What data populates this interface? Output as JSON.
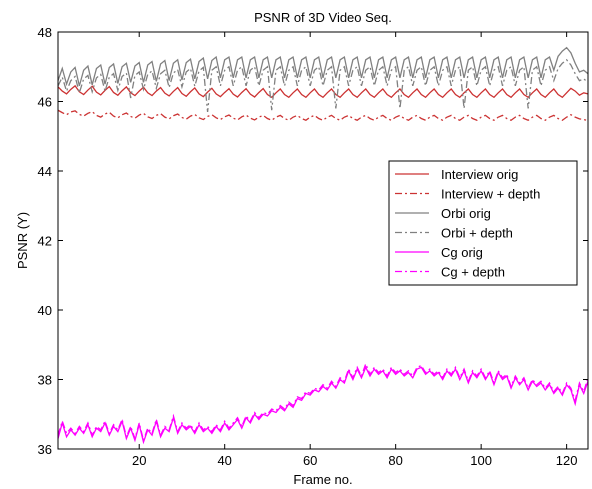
{
  "chart_data": {
    "type": "line",
    "title": "PSNR of 3D Video Seq.",
    "xlabel": "Frame no.",
    "ylabel": "PSNR (Y)",
    "xlim": [
      1,
      125
    ],
    "ylim": [
      36,
      48
    ],
    "xticks": [
      20,
      40,
      60,
      80,
      100,
      120
    ],
    "yticks": [
      36,
      38,
      40,
      42,
      44,
      46,
      48
    ],
    "grid": false,
    "legend_position": "right",
    "x": [
      1,
      2,
      3,
      4,
      5,
      6,
      7,
      8,
      9,
      10,
      11,
      12,
      13,
      14,
      15,
      16,
      17,
      18,
      19,
      20,
      21,
      22,
      23,
      24,
      25,
      26,
      27,
      28,
      29,
      30,
      31,
      32,
      33,
      34,
      35,
      36,
      37,
      38,
      39,
      40,
      41,
      42,
      43,
      44,
      45,
      46,
      47,
      48,
      49,
      50,
      51,
      52,
      53,
      54,
      55,
      56,
      57,
      58,
      59,
      60,
      61,
      62,
      63,
      64,
      65,
      66,
      67,
      68,
      69,
      70,
      71,
      72,
      73,
      74,
      75,
      76,
      77,
      78,
      79,
      80,
      81,
      82,
      83,
      84,
      85,
      86,
      87,
      88,
      89,
      90,
      91,
      92,
      93,
      94,
      95,
      96,
      97,
      98,
      99,
      100,
      101,
      102,
      103,
      104,
      105,
      106,
      107,
      108,
      109,
      110,
      111,
      112,
      113,
      114,
      115,
      116,
      117,
      118,
      119,
      120,
      121,
      122,
      123,
      124,
      125
    ],
    "series": [
      {
        "name": "Interview orig",
        "color": "#cc3333",
        "dash": "solid",
        "values": [
          46.42,
          46.3,
          46.22,
          46.35,
          46.45,
          46.28,
          46.2,
          46.33,
          46.44,
          46.27,
          46.19,
          46.32,
          46.43,
          46.26,
          46.18,
          46.31,
          46.42,
          46.25,
          46.17,
          46.3,
          46.41,
          46.25,
          46.17,
          46.3,
          46.4,
          46.24,
          46.16,
          46.29,
          46.4,
          46.23,
          46.15,
          46.28,
          46.39,
          46.22,
          46.14,
          46.27,
          46.38,
          46.22,
          46.14,
          46.26,
          46.37,
          46.21,
          46.13,
          46.26,
          46.37,
          46.21,
          46.13,
          46.26,
          46.37,
          46.2,
          46.12,
          46.25,
          46.36,
          46.2,
          46.12,
          46.25,
          46.36,
          46.2,
          46.12,
          46.25,
          46.36,
          46.2,
          46.12,
          46.25,
          46.36,
          46.2,
          46.12,
          46.25,
          46.36,
          46.2,
          46.12,
          46.25,
          46.36,
          46.2,
          46.12,
          46.25,
          46.36,
          46.2,
          46.12,
          46.25,
          46.36,
          46.2,
          46.12,
          46.25,
          46.36,
          46.2,
          46.12,
          46.25,
          46.36,
          46.2,
          46.12,
          46.25,
          46.36,
          46.2,
          46.12,
          46.25,
          46.36,
          46.2,
          46.12,
          46.25,
          46.36,
          46.2,
          46.12,
          46.25,
          46.36,
          46.2,
          46.12,
          46.25,
          46.36,
          46.2,
          46.12,
          46.25,
          46.36,
          46.2,
          46.12,
          46.25,
          46.36,
          46.2,
          46.12,
          46.25,
          46.38,
          46.3,
          46.18,
          46.25,
          46.22
        ]
      },
      {
        "name": "Interview + depth",
        "color": "#cc3333",
        "dash": "dashdot",
        "values": [
          45.75,
          45.68,
          45.62,
          45.7,
          45.73,
          45.63,
          45.58,
          45.66,
          45.71,
          45.6,
          45.55,
          45.64,
          45.69,
          45.58,
          45.53,
          45.62,
          45.67,
          45.57,
          45.52,
          45.61,
          45.66,
          45.56,
          45.51,
          45.6,
          45.65,
          45.55,
          45.5,
          45.59,
          45.64,
          45.54,
          45.49,
          45.58,
          45.63,
          45.53,
          45.48,
          45.57,
          45.62,
          45.53,
          45.48,
          45.56,
          45.61,
          45.52,
          45.47,
          45.56,
          45.61,
          45.52,
          45.47,
          45.55,
          45.6,
          45.51,
          45.46,
          45.55,
          45.6,
          45.51,
          45.46,
          45.55,
          45.6,
          45.51,
          45.46,
          45.55,
          45.6,
          45.51,
          45.46,
          45.55,
          45.6,
          45.51,
          45.46,
          45.55,
          45.6,
          45.51,
          45.46,
          45.55,
          45.6,
          45.51,
          45.46,
          45.55,
          45.6,
          45.51,
          45.46,
          45.55,
          45.6,
          45.51,
          45.46,
          45.55,
          45.6,
          45.51,
          45.46,
          45.55,
          45.6,
          45.51,
          45.46,
          45.55,
          45.6,
          45.51,
          45.46,
          45.55,
          45.6,
          45.51,
          45.46,
          45.55,
          45.6,
          45.51,
          45.46,
          45.55,
          45.6,
          45.51,
          45.46,
          45.55,
          45.6,
          45.51,
          45.46,
          45.55,
          45.6,
          45.51,
          45.46,
          45.55,
          45.6,
          45.51,
          45.46,
          45.55,
          45.62,
          45.55,
          45.5,
          45.48,
          45.45
        ]
      },
      {
        "name": "Orbi orig",
        "color": "#808080",
        "dash": "solid",
        "values": [
          46.6,
          46.95,
          46.5,
          46.85,
          46.98,
          46.45,
          46.9,
          47.02,
          46.48,
          46.95,
          47.05,
          46.5,
          46.98,
          47.08,
          46.52,
          47.0,
          47.1,
          46.55,
          47.02,
          47.12,
          46.55,
          47.05,
          47.15,
          46.58,
          47.08,
          47.18,
          46.6,
          47.1,
          47.2,
          46.62,
          47.12,
          47.22,
          46.65,
          47.15,
          47.25,
          46.65,
          47.18,
          47.28,
          46.68,
          47.2,
          47.28,
          46.68,
          47.2,
          47.28,
          46.68,
          47.2,
          47.28,
          46.68,
          47.2,
          47.28,
          46.68,
          47.2,
          47.28,
          46.68,
          47.2,
          47.28,
          46.68,
          47.2,
          47.28,
          46.68,
          47.2,
          47.28,
          46.68,
          47.2,
          47.28,
          46.68,
          47.2,
          47.28,
          46.68,
          47.2,
          47.28,
          46.68,
          47.2,
          47.28,
          46.68,
          47.2,
          47.28,
          46.68,
          47.2,
          47.28,
          46.68,
          47.2,
          47.28,
          46.68,
          47.2,
          47.28,
          46.68,
          47.2,
          47.28,
          46.68,
          47.2,
          47.28,
          46.68,
          47.2,
          47.28,
          46.68,
          47.2,
          47.28,
          46.68,
          47.2,
          47.28,
          46.68,
          47.2,
          47.28,
          46.68,
          47.2,
          47.28,
          46.68,
          47.2,
          47.28,
          46.68,
          47.2,
          47.28,
          46.68,
          47.2,
          47.28,
          46.9,
          47.3,
          47.45,
          47.55,
          47.4,
          47.1,
          46.85,
          46.9,
          46.8
        ]
      },
      {
        "name": "Orbi + depth",
        "color": "#808080",
        "dash": "dashdot",
        "values": [
          46.45,
          46.7,
          46.3,
          46.6,
          46.72,
          46.25,
          46.65,
          46.75,
          46.28,
          46.68,
          46.78,
          46.3,
          46.7,
          46.8,
          46.32,
          46.72,
          46.82,
          46.1,
          46.75,
          46.85,
          46.35,
          46.78,
          46.88,
          46.38,
          46.8,
          46.9,
          46.4,
          46.82,
          46.92,
          46.42,
          46.85,
          46.95,
          46.44,
          46.88,
          46.98,
          45.7,
          46.9,
          47.0,
          46.45,
          46.9,
          47.0,
          46.45,
          46.9,
          47.0,
          46.45,
          46.9,
          47.0,
          46.45,
          46.9,
          47.0,
          45.75,
          46.9,
          47.0,
          46.45,
          46.9,
          47.0,
          46.45,
          46.9,
          47.0,
          46.45,
          46.9,
          47.0,
          46.45,
          46.9,
          47.0,
          45.8,
          46.9,
          47.0,
          46.45,
          46.9,
          47.0,
          46.45,
          46.9,
          47.0,
          46.45,
          46.9,
          47.0,
          46.45,
          46.9,
          47.0,
          45.8,
          46.9,
          47.0,
          46.45,
          46.9,
          47.0,
          46.45,
          46.9,
          47.0,
          46.45,
          46.9,
          47.0,
          46.45,
          46.9,
          47.0,
          45.8,
          46.9,
          47.0,
          46.45,
          46.9,
          47.0,
          46.45,
          46.9,
          47.0,
          46.45,
          46.9,
          47.0,
          46.45,
          46.9,
          47.0,
          45.8,
          46.9,
          47.0,
          46.45,
          46.9,
          47.0,
          46.6,
          46.95,
          47.1,
          47.2,
          47.05,
          46.8,
          46.6,
          46.65,
          46.55
        ]
      },
      {
        "name": "Cg orig",
        "color": "#ff00ff",
        "dash": "solid",
        "values": [
          36.3,
          36.75,
          36.35,
          36.55,
          36.4,
          36.6,
          36.45,
          36.7,
          36.35,
          36.6,
          36.5,
          36.75,
          36.4,
          36.65,
          36.5,
          36.8,
          36.3,
          36.6,
          36.25,
          36.7,
          36.2,
          36.55,
          36.4,
          36.8,
          36.35,
          36.6,
          36.5,
          36.9,
          36.45,
          36.7,
          36.55,
          36.65,
          36.45,
          36.7,
          36.5,
          36.6,
          36.45,
          36.65,
          36.5,
          36.75,
          36.55,
          36.7,
          36.85,
          36.6,
          36.9,
          36.75,
          37.0,
          36.85,
          37.0,
          36.95,
          37.1,
          37.05,
          37.2,
          37.1,
          37.3,
          37.2,
          37.45,
          37.4,
          37.6,
          37.55,
          37.7,
          37.65,
          37.8,
          37.7,
          37.9,
          37.75,
          38.0,
          37.9,
          38.25,
          38.0,
          38.3,
          38.05,
          38.35,
          38.1,
          38.3,
          38.15,
          38.25,
          38.05,
          38.3,
          38.15,
          38.25,
          38.1,
          38.2,
          38.05,
          38.3,
          38.35,
          38.15,
          38.25,
          38.1,
          38.2,
          38.0,
          38.25,
          38.1,
          38.3,
          38.0,
          38.25,
          37.9,
          38.2,
          38.05,
          38.25,
          38.0,
          38.2,
          37.85,
          38.2,
          38.0,
          38.1,
          37.75,
          38.05,
          37.85,
          38.0,
          37.7,
          37.95,
          37.8,
          37.9,
          37.7,
          37.85,
          37.6,
          37.75,
          37.55,
          37.85,
          37.7,
          37.3,
          37.85,
          37.6,
          37.95
        ]
      },
      {
        "name": "Cg + depth",
        "color": "#ff00ff",
        "dash": "dashdot",
        "values": [
          36.4,
          36.8,
          36.45,
          36.6,
          36.45,
          36.65,
          36.5,
          36.75,
          36.4,
          36.65,
          36.55,
          36.8,
          36.45,
          36.7,
          36.55,
          36.85,
          36.35,
          36.65,
          36.3,
          36.75,
          36.25,
          36.6,
          36.45,
          36.85,
          36.4,
          36.65,
          36.55,
          36.95,
          36.5,
          36.75,
          36.6,
          36.7,
          36.5,
          36.75,
          36.55,
          36.65,
          36.5,
          36.7,
          36.55,
          36.8,
          36.6,
          36.75,
          36.9,
          36.65,
          36.95,
          36.8,
          37.05,
          36.9,
          37.05,
          37.0,
          37.15,
          37.1,
          37.25,
          37.15,
          37.35,
          37.25,
          37.5,
          37.45,
          37.65,
          37.6,
          37.75,
          37.7,
          37.85,
          37.75,
          37.95,
          37.8,
          38.05,
          37.95,
          38.3,
          38.05,
          38.35,
          38.1,
          38.45,
          38.15,
          38.35,
          38.2,
          38.3,
          38.1,
          38.35,
          38.2,
          38.3,
          38.15,
          38.25,
          38.1,
          38.35,
          38.4,
          38.2,
          38.3,
          38.15,
          38.25,
          38.05,
          38.3,
          38.15,
          38.35,
          38.05,
          38.3,
          37.95,
          38.25,
          38.1,
          38.3,
          38.05,
          38.25,
          37.9,
          38.25,
          38.05,
          38.15,
          37.8,
          38.1,
          37.9,
          38.05,
          37.75,
          38.0,
          37.85,
          37.95,
          37.75,
          37.9,
          37.65,
          37.8,
          37.6,
          37.9,
          37.75,
          37.4,
          37.9,
          37.65,
          38.05
        ]
      }
    ],
    "legend": {
      "entries": [
        "Interview orig",
        "Interview + depth",
        "Orbi orig",
        "Orbi + depth",
        "Cg orig",
        "Cg + depth"
      ]
    }
  }
}
